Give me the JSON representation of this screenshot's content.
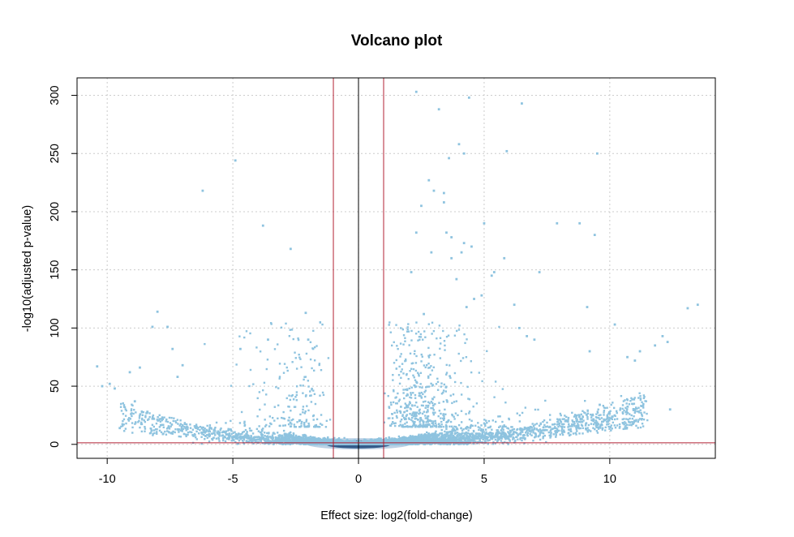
{
  "chart_data": {
    "type": "scatter",
    "title": "Volcano plot",
    "xlabel": "Effect size: log2(fold-change)",
    "ylabel": "-log10(adjusted p-value)",
    "xlim": [
      -11.2,
      14.2
    ],
    "ylim": [
      -12,
      315
    ],
    "xticks": [
      -10,
      -5,
      0,
      5,
      10
    ],
    "yticks": [
      0,
      50,
      100,
      150,
      200,
      250,
      300
    ],
    "grid": true,
    "point_color": "#8EC3DF",
    "dense_color": "#0B2A5B",
    "reference_lines": {
      "vertical_black": 0,
      "vertical_red": [
        -1,
        1
      ],
      "horizontal_red": 1.3,
      "black_color": "#000000",
      "red_color": "#B22234"
    },
    "outliers": [
      [
        -10.4,
        67
      ],
      [
        -10.2,
        50
      ],
      [
        -9.9,
        52
      ],
      [
        -9.7,
        48
      ],
      [
        -9.5,
        14
      ],
      [
        -9.1,
        62
      ],
      [
        -8.9,
        37
      ],
      [
        -8.7,
        66
      ],
      [
        -8.4,
        28
      ],
      [
        -8.2,
        22
      ],
      [
        -8.2,
        101
      ],
      [
        -8.0,
        114
      ],
      [
        -7.6,
        101
      ],
      [
        -7.4,
        82
      ],
      [
        -7.2,
        58
      ],
      [
        -7.0,
        68
      ],
      [
        -6.2,
        218
      ],
      [
        -4.9,
        244
      ],
      [
        -4.7,
        82
      ],
      [
        -3.8,
        188
      ],
      [
        -3.6,
        90
      ],
      [
        -2.7,
        168
      ],
      [
        -2.1,
        113
      ],
      [
        -2.0,
        90
      ],
      [
        2.3,
        303
      ],
      [
        2.1,
        148
      ],
      [
        2.3,
        182
      ],
      [
        2.5,
        205
      ],
      [
        2.6,
        112
      ],
      [
        2.8,
        227
      ],
      [
        2.9,
        165
      ],
      [
        3.0,
        218
      ],
      [
        3.2,
        288
      ],
      [
        3.4,
        216
      ],
      [
        3.4,
        208
      ],
      [
        3.5,
        182
      ],
      [
        3.6,
        246
      ],
      [
        3.7,
        178
      ],
      [
        3.7,
        160
      ],
      [
        3.9,
        142
      ],
      [
        4.0,
        258
      ],
      [
        4.1,
        165
      ],
      [
        4.2,
        173
      ],
      [
        4.2,
        250
      ],
      [
        4.3,
        118
      ],
      [
        4.4,
        298
      ],
      [
        4.5,
        170
      ],
      [
        4.6,
        125
      ],
      [
        4.9,
        128
      ],
      [
        5.0,
        190
      ],
      [
        5.3,
        145
      ],
      [
        5.4,
        148
      ],
      [
        5.8,
        160
      ],
      [
        5.9,
        252
      ],
      [
        6.5,
        293
      ],
      [
        6.2,
        120
      ],
      [
        6.4,
        100
      ],
      [
        6.7,
        93
      ],
      [
        7.0,
        90
      ],
      [
        7.2,
        148
      ],
      [
        7.9,
        190
      ],
      [
        8.8,
        190
      ],
      [
        9.1,
        118
      ],
      [
        9.2,
        80
      ],
      [
        9.4,
        180
      ],
      [
        9.5,
        250
      ],
      [
        9.6,
        34
      ],
      [
        10.2,
        103
      ],
      [
        11.2,
        80
      ],
      [
        11.8,
        85
      ],
      [
        12.1,
        93
      ],
      [
        12.4,
        30
      ],
      [
        13.1,
        117
      ],
      [
        13.5,
        120
      ],
      [
        12.3,
        88
      ],
      [
        11.0,
        72
      ],
      [
        10.7,
        75
      ]
    ]
  }
}
